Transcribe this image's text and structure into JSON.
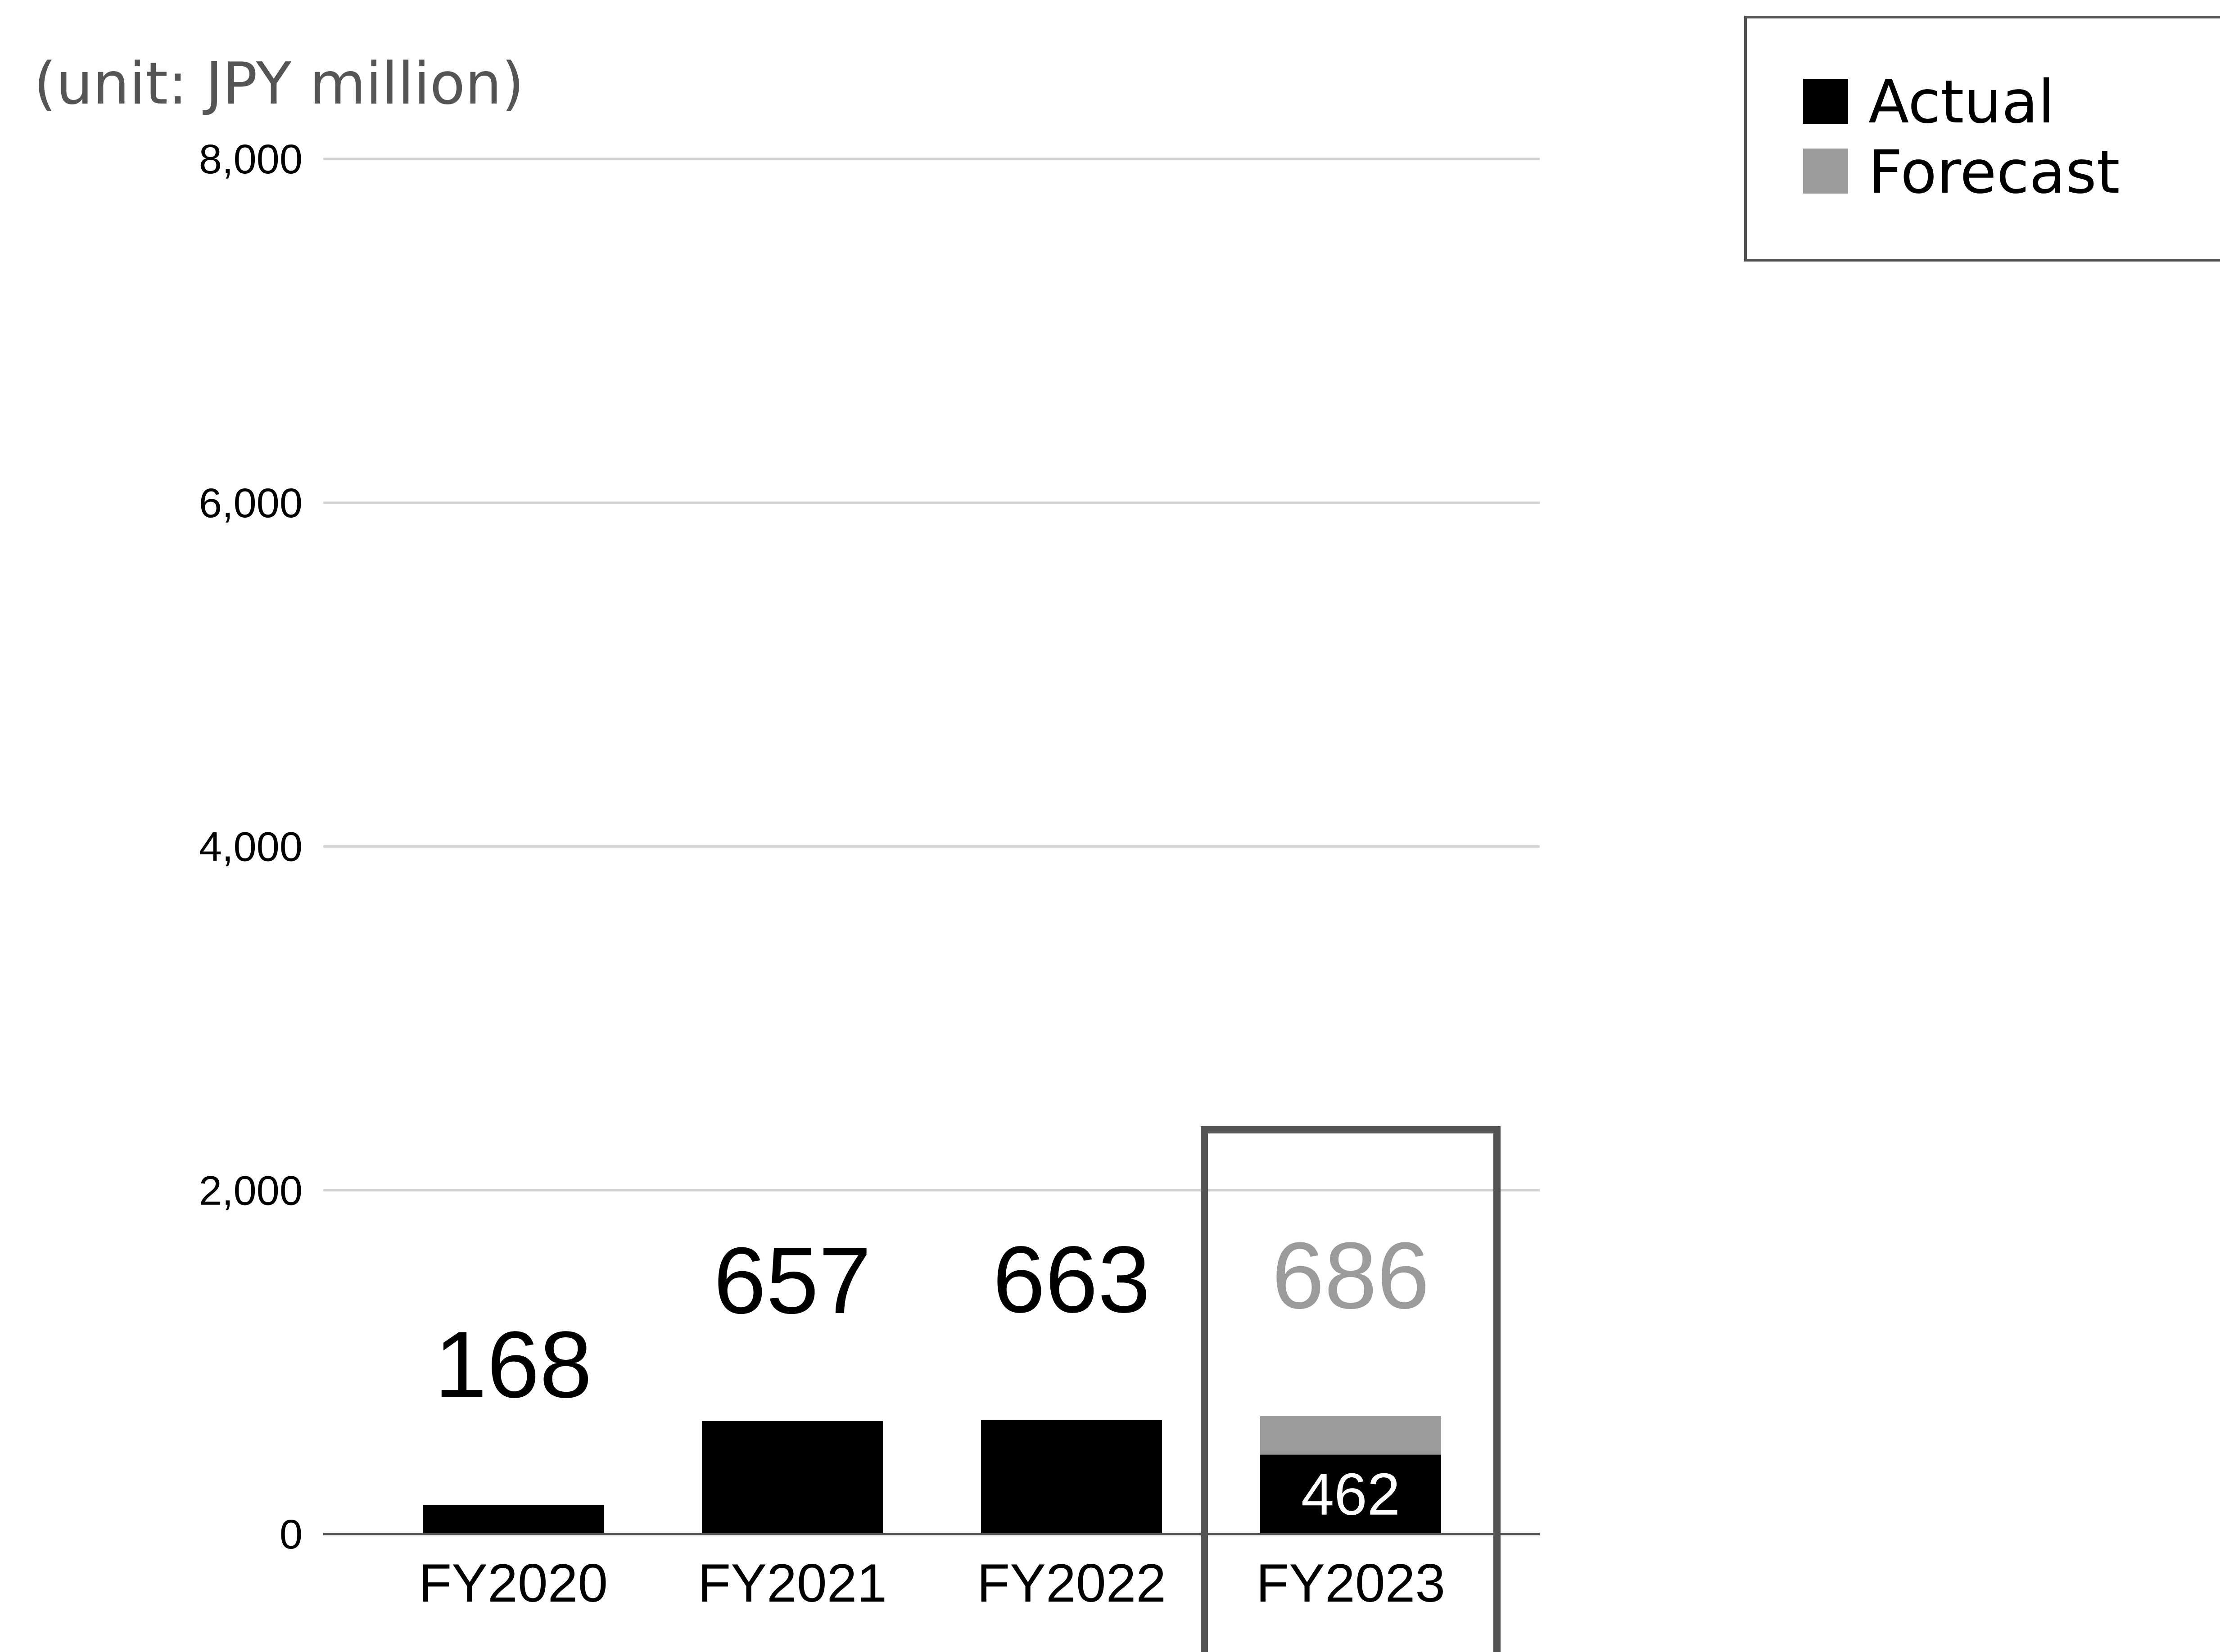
{
  "unit_label": "(unit: JPY million)",
  "legend": {
    "actual_label": "Actual",
    "forecast_label": "Forecast"
  },
  "colors": {
    "actual": "#000000",
    "forecast": "#9b9b9b",
    "grid": "#d0d0d0",
    "axis": "#555555",
    "highlight_box": "#555555",
    "forecast_label": "#9b9b9b",
    "actual_inside_label": "#ffffff"
  },
  "chart_data": {
    "type": "bar",
    "stacked": true,
    "categories": [
      "FY2020",
      "FY2021",
      "FY2022",
      "FY2023"
    ],
    "series": [
      {
        "name": "Actual",
        "values": [
          168,
          657,
          663,
          462
        ]
      },
      {
        "name": "Forecast",
        "values": [
          0,
          0,
          0,
          224
        ]
      }
    ],
    "total_labels": [
      "168",
      "657",
      "663",
      "686"
    ],
    "inside_labels": [
      "",
      "",
      "",
      "462"
    ],
    "highlighted_category": "FY2023",
    "ylim": [
      0,
      8000
    ],
    "yticks": [
      0,
      2000,
      4000,
      6000,
      8000
    ],
    "ytick_labels": [
      "0",
      "2,000",
      "4,000",
      "6,000",
      "8,000"
    ],
    "grid": true,
    "legend_position": "top-right",
    "title": "",
    "xlabel": "",
    "ylabel": ""
  }
}
